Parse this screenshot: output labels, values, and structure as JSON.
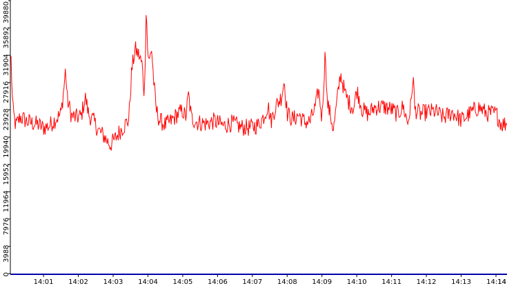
{
  "colors": {
    "background": "#ffffff",
    "series": "#ff0000",
    "x_axis": "#0000aa",
    "y_axis": "#000000",
    "tick_text": "#000000"
  },
  "chart_data": {
    "type": "line",
    "title": "",
    "xlabel": "",
    "ylabel": "",
    "grid": false,
    "legend": "none",
    "x_range": [
      "14:00:04",
      "14:14:19"
    ],
    "ylim": [
      0,
      39880
    ],
    "y_ticks": [
      "0",
      "3988",
      "7976",
      "11964",
      "15952",
      "19940",
      "23928",
      "27916",
      "31904",
      "35892",
      "39880"
    ],
    "x_ticks": [
      "14:01",
      "14:02",
      "14:03",
      "14:04",
      "14:05",
      "14:06",
      "14:07",
      "14:08",
      "14:09",
      "14:10",
      "14:11",
      "14:12",
      "14:13",
      "14:14",
      "14"
    ],
    "anchors": [
      [
        "14:00:04",
        31400
      ],
      [
        "14:00:07",
        24000
      ],
      [
        "14:00:12",
        21600
      ],
      [
        "14:00:20",
        22900
      ],
      [
        "14:00:30",
        22300
      ],
      [
        "14:00:40",
        22000
      ],
      [
        "14:00:50",
        21800
      ],
      [
        "14:01:00",
        21300
      ],
      [
        "14:01:10",
        21600
      ],
      [
        "14:01:20",
        22500
      ],
      [
        "14:01:30",
        23300
      ],
      [
        "14:01:35",
        27000
      ],
      [
        "14:01:38",
        29900
      ],
      [
        "14:01:41",
        25500
      ],
      [
        "14:01:48",
        23100
      ],
      [
        "14:01:55",
        22800
      ],
      [
        "14:02:05",
        23000
      ],
      [
        "14:02:12",
        25800
      ],
      [
        "14:02:18",
        23200
      ],
      [
        "14:02:25",
        22500
      ],
      [
        "14:02:35",
        20900
      ],
      [
        "14:02:45",
        20000
      ],
      [
        "14:02:55",
        18800
      ],
      [
        "14:03:02",
        19500
      ],
      [
        "14:03:10",
        20600
      ],
      [
        "14:03:20",
        21700
      ],
      [
        "14:03:27",
        22500
      ],
      [
        "14:03:32",
        29700
      ],
      [
        "14:03:38",
        32800
      ],
      [
        "14:03:45",
        31800
      ],
      [
        "14:03:50",
        30500
      ],
      [
        "14:03:54",
        26000
      ],
      [
        "14:03:56",
        34500
      ],
      [
        "14:03:57",
        39800
      ],
      [
        "14:03:59",
        33400
      ],
      [
        "14:04:02",
        30600
      ],
      [
        "14:04:06",
        33200
      ],
      [
        "14:04:10",
        28000
      ],
      [
        "14:04:14",
        24000
      ],
      [
        "14:04:20",
        22400
      ],
      [
        "14:04:30",
        21700
      ],
      [
        "14:04:40",
        22300
      ],
      [
        "14:04:50",
        23200
      ],
      [
        "14:05:00",
        23800
      ],
      [
        "14:05:05",
        22800
      ],
      [
        "14:05:10",
        26100
      ],
      [
        "14:05:15",
        22700
      ],
      [
        "14:05:25",
        22100
      ],
      [
        "14:05:40",
        21900
      ],
      [
        "14:05:55",
        22300
      ],
      [
        "14:06:10",
        21600
      ],
      [
        "14:06:25",
        22000
      ],
      [
        "14:06:40",
        21400
      ],
      [
        "14:06:55",
        21300
      ],
      [
        "14:07:10",
        21700
      ],
      [
        "14:07:20",
        23000
      ],
      [
        "14:07:27",
        24600
      ],
      [
        "14:07:32",
        22200
      ],
      [
        "14:07:40",
        24400
      ],
      [
        "14:07:50",
        25800
      ],
      [
        "14:07:55",
        28300
      ],
      [
        "14:08:00",
        23400
      ],
      [
        "14:08:10",
        22500
      ],
      [
        "14:08:20",
        23200
      ],
      [
        "14:08:30",
        22100
      ],
      [
        "14:08:40",
        22300
      ],
      [
        "14:08:50",
        24700
      ],
      [
        "14:08:54",
        27000
      ],
      [
        "14:09:00",
        22600
      ],
      [
        "14:09:04",
        29500
      ],
      [
        "14:09:06",
        32900
      ],
      [
        "14:09:09",
        25000
      ],
      [
        "14:09:15",
        23000
      ],
      [
        "14:09:20",
        21000
      ],
      [
        "14:09:25",
        24500
      ],
      [
        "14:09:32",
        29300
      ],
      [
        "14:09:40",
        26200
      ],
      [
        "14:09:48",
        24800
      ],
      [
        "14:09:55",
        24200
      ],
      [
        "14:10:00",
        26900
      ],
      [
        "14:10:10",
        23900
      ],
      [
        "14:10:20",
        23300
      ],
      [
        "14:10:30",
        24300
      ],
      [
        "14:10:45",
        24400
      ],
      [
        "14:11:00",
        24000
      ],
      [
        "14:11:10",
        23300
      ],
      [
        "14:11:20",
        24400
      ],
      [
        "14:11:28",
        22000
      ],
      [
        "14:11:34",
        25000
      ],
      [
        "14:11:37",
        29300
      ],
      [
        "14:11:40",
        24000
      ],
      [
        "14:11:50",
        23300
      ],
      [
        "14:12:00",
        23600
      ],
      [
        "14:12:15",
        23700
      ],
      [
        "14:12:30",
        22800
      ],
      [
        "14:12:45",
        23600
      ],
      [
        "14:13:00",
        22400
      ],
      [
        "14:13:15",
        23400
      ],
      [
        "14:13:30",
        24300
      ],
      [
        "14:13:45",
        23400
      ],
      [
        "14:14:00",
        23400
      ],
      [
        "14:14:10",
        21800
      ],
      [
        "14:14:19",
        22000
      ]
    ]
  }
}
